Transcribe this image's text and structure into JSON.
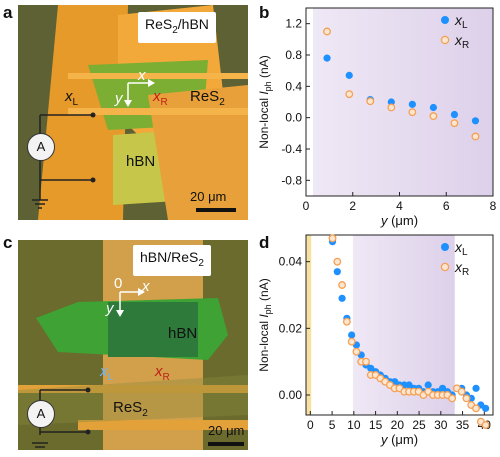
{
  "panels": {
    "a": {
      "letter": "a",
      "tag_main": "ReS",
      "tag_sub": "2",
      "tag_tail": "/hBN",
      "axis_x": "x",
      "axis_y": "y",
      "xl_main": "x",
      "xl_sub": "L",
      "xr_main": "x",
      "xr_sub": "R",
      "res2_main": "ReS",
      "res2_sub": "2",
      "hbn": "hBN",
      "meter": "A",
      "scale": "20 μm"
    },
    "c": {
      "letter": "c",
      "tag_head": "hBN/ReS",
      "tag_sub": "2",
      "origin": "0",
      "axis_x": "x",
      "axis_y": "y",
      "xl_main": "x",
      "xl_sub": "L",
      "xr_main": "x",
      "xr_sub": "R",
      "hbn": "hBN",
      "res2_main": "ReS",
      "res2_sub": "2",
      "meter": "A",
      "scale": "20 μm"
    },
    "b": {
      "letter": "b"
    },
    "d": {
      "letter": "d"
    }
  },
  "colors": {
    "xL": "#1e90ff",
    "xR": "#f5a055",
    "shade": "#ddd0ea",
    "yellow_band": "#f7e1a0"
  },
  "chart_data": [
    {
      "type": "scatter",
      "panel": "b",
      "ylabel_main": "Non-local ",
      "ylabel_I": "I",
      "ylabel_sub": "ph",
      "ylabel_tail": " (nA)",
      "xlabel_var": "y",
      "xlabel_unit": " (μm)",
      "xlim": [
        0,
        8
      ],
      "ylim": [
        -1.0,
        1.4
      ],
      "xticks": [
        "0",
        "2",
        "4",
        "6",
        "8"
      ],
      "yticks": [
        "1.2",
        "0.8",
        "0.4",
        "0.0",
        "-0.4",
        "-0.8"
      ],
      "shaded_region": [
        0.3,
        8
      ],
      "legend": [
        {
          "main": "x",
          "sub": "L"
        },
        {
          "main": "x",
          "sub": "R"
        }
      ],
      "series": [
        {
          "name": "xL",
          "marker": "filled",
          "x": [
            0.9,
            1.85,
            2.75,
            3.65,
            4.55,
            5.45,
            6.35,
            7.25
          ],
          "y": [
            0.76,
            0.54,
            0.23,
            0.2,
            0.17,
            0.13,
            0.04,
            -0.04
          ]
        },
        {
          "name": "xR",
          "marker": "open",
          "x": [
            0.9,
            1.85,
            2.75,
            3.65,
            4.55,
            5.45,
            6.35,
            7.25
          ],
          "y": [
            1.1,
            0.3,
            0.21,
            0.13,
            0.07,
            0.02,
            -0.07,
            -0.24
          ]
        }
      ]
    },
    {
      "type": "scatter",
      "panel": "d",
      "ylabel_main": "Non-local ",
      "ylabel_I": "I",
      "ylabel_sub": "ph",
      "ylabel_tail": " (nA)",
      "xlabel_var": "y",
      "xlabel_unit": " (μm)",
      "xlim": [
        -1,
        42
      ],
      "ylim": [
        -0.006,
        0.048
      ],
      "xticks": [
        "0",
        "5",
        "10",
        "15",
        "20",
        "25",
        "30",
        "35",
        "40"
      ],
      "yticks": [
        "0.04",
        "0.02",
        "0.00"
      ],
      "yellow_band": [
        -1,
        0.2
      ],
      "shaded_region": [
        9.8,
        33.2
      ],
      "legend": [
        {
          "main": "x",
          "sub": "L"
        },
        {
          "main": "x",
          "sub": "R"
        }
      ],
      "series": [
        {
          "name": "xL",
          "marker": "filled",
          "x": [
            5.1,
            6.2,
            7.3,
            8.4,
            9.5,
            10.6,
            11.7,
            12.8,
            13.9,
            15.0,
            16.1,
            17.2,
            18.3,
            19.4,
            20.5,
            21.6,
            22.7,
            23.8,
            24.9,
            26.0,
            27.1,
            28.2,
            29.3,
            30.4,
            31.5,
            32.6,
            33.7,
            34.8,
            35.9,
            37.0,
            38.1,
            39.2,
            40.3
          ],
          "y": [
            0.046,
            0.037,
            0.029,
            0.023,
            0.018,
            0.015,
            0.012,
            0.009,
            0.008,
            0.007,
            0.006,
            0.005,
            0.004,
            0.004,
            0.003,
            0.003,
            0.003,
            0.002,
            0.002,
            0.001,
            0.003,
            0.001,
            0.001,
            0.002,
            0.001,
            0.0,
            0.002,
            0.002,
            0.0,
            -0.001,
            0.002,
            -0.003,
            -0.004
          ]
        },
        {
          "name": "xR",
          "marker": "open",
          "x": [
            5.1,
            6.2,
            7.3,
            8.4,
            9.5,
            10.6,
            11.7,
            12.8,
            13.9,
            15.0,
            16.1,
            17.2,
            18.3,
            19.4,
            20.5,
            21.6,
            22.7,
            23.8,
            24.9,
            26.0,
            27.1,
            28.2,
            29.3,
            30.4,
            31.5,
            32.6,
            33.7,
            34.8,
            35.9,
            37.0,
            38.1,
            39.2,
            40.3
          ],
          "y": [
            0.047,
            0.04,
            0.033,
            0.022,
            0.016,
            0.013,
            0.01,
            0.01,
            0.006,
            0.006,
            0.005,
            0.004,
            0.003,
            0.002,
            0.002,
            0.001,
            0.001,
            0.001,
            0.001,
            0.0,
            0.001,
            0.0,
            0.0,
            0.0,
            0.0,
            -0.001,
            0.002,
            0.001,
            -0.001,
            -0.003,
            -0.004,
            -0.008,
            -0.009
          ]
        }
      ]
    }
  ]
}
